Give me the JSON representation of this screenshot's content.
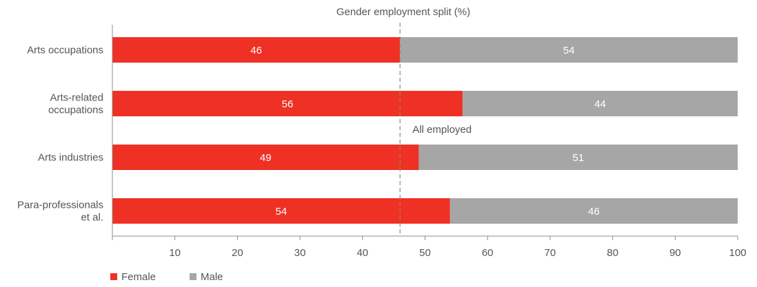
{
  "chart_data": {
    "type": "bar",
    "orientation": "horizontal",
    "stacked": true,
    "title": "Gender employment split (%)",
    "categories": [
      [
        "Arts occupations"
      ],
      [
        "Arts-related",
        "occupations"
      ],
      [
        "Arts industries"
      ],
      [
        "Para-professionals",
        "et al."
      ]
    ],
    "series": [
      {
        "name": "Female",
        "color": "#ee3124",
        "values": [
          46,
          56,
          49,
          54
        ]
      },
      {
        "name": "Male",
        "color": "#a7a6a6",
        "values": [
          54,
          44,
          51,
          46
        ]
      }
    ],
    "xlim": [
      0,
      100
    ],
    "xticks": [
      10,
      20,
      30,
      40,
      50,
      60,
      70,
      80,
      90,
      100
    ],
    "reference_line": {
      "value": 46,
      "label": "All employed",
      "style": "dashed"
    },
    "legend": {
      "position": "bottom-left"
    },
    "grid": false
  },
  "colors": {
    "axis": "#8c8c8c",
    "text": "#555555",
    "bar_label": "#ffffff"
  }
}
